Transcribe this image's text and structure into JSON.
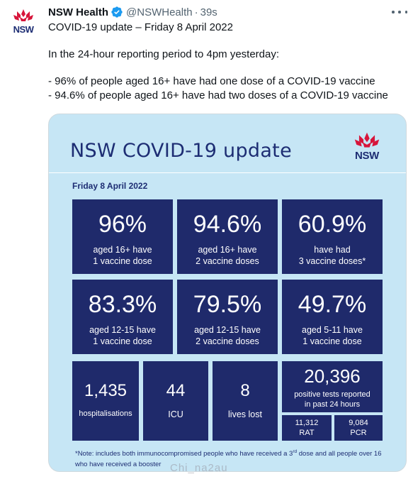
{
  "tweet": {
    "author": "NSW Health",
    "handle": "@NSWHealth",
    "separator": "·",
    "time": "39s",
    "logo_text": "NSW",
    "lines": [
      "COVID-19 update – Friday 8 April 2022",
      "In the 24-hour reporting period to 4pm yesterday:",
      "- 96% of people aged 16+ have had one dose of a COVID-19 vaccine",
      "- 94.6% of people aged 16+ have had two doses of a COVID-19 vaccine"
    ]
  },
  "card": {
    "title": "NSW COVID-19 update",
    "logo_text": "NSW",
    "date": "Friday 8 April 2022",
    "tiles": [
      {
        "value": "96%",
        "label1": "aged 16+ have",
        "label2": "1 vaccine dose"
      },
      {
        "value": "94.6%",
        "label1": "aged 16+ have",
        "label2": "2 vaccine doses"
      },
      {
        "value": "60.9%",
        "label1": "have had",
        "label2": "3 vaccine doses*"
      },
      {
        "value": "83.3%",
        "label1": "aged 12-15 have",
        "label2": "1 vaccine dose"
      },
      {
        "value": "79.5%",
        "label1": "aged 12-15 have",
        "label2": "2 vaccine doses"
      },
      {
        "value": "49.7%",
        "label1": "aged 5-11 have",
        "label2": "1 vaccine dose"
      }
    ],
    "hospitalisations": {
      "value": "1,435",
      "label": "hospitalisations"
    },
    "icu": {
      "value": "44",
      "label": "ICU"
    },
    "deaths": {
      "value": "8",
      "label": "lives lost"
    },
    "tests": {
      "value": "20,396",
      "label1": "positive tests reported",
      "label2": "in past 24 hours"
    },
    "rat": {
      "value": "11,312",
      "label": "RAT"
    },
    "pcr": {
      "value": "9,084",
      "label": "PCR"
    },
    "note_part1": "*Note: includes both immunocompromised people who have received a 3",
    "note_sup": "rd",
    "note_part2": " dose and all people over 16 who have received a booster"
  },
  "watermark": "Chi_na2au",
  "colors": {
    "card_bg": "#c6e6f5",
    "tile_bg": "#1f2a6b",
    "nsw_red": "#d7153a",
    "nsw_navy": "#1d2d73",
    "verified": "#1d9bf0"
  }
}
